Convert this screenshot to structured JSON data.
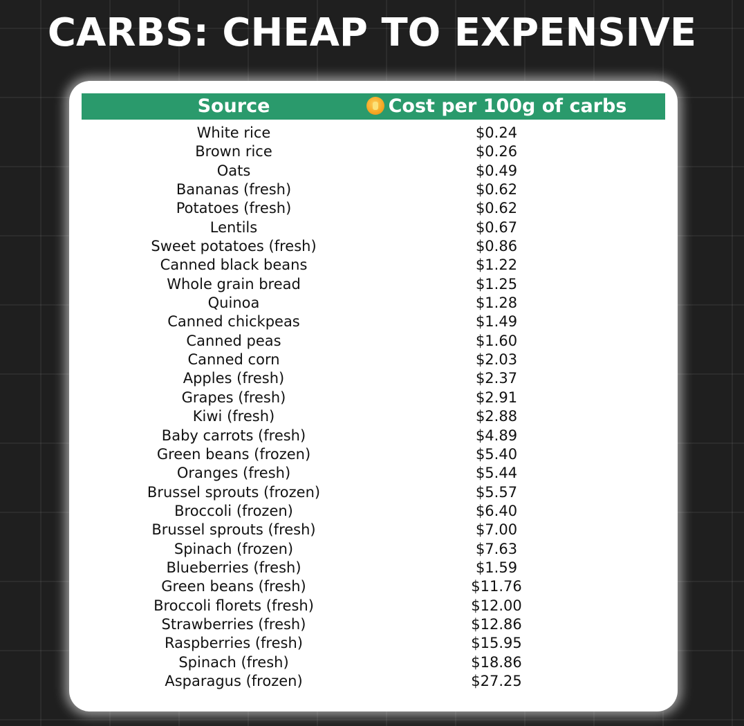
{
  "title": "CARBS: CHEAP TO EXPENSIVE",
  "table": {
    "headers": {
      "source": "Source",
      "cost": "Cost per 100g of carbs",
      "cost_icon": "coin-icon"
    },
    "header_color": "#2a9a6c",
    "rows": [
      {
        "source": "White rice",
        "cost": "$0.24"
      },
      {
        "source": "Brown rice",
        "cost": "$0.26"
      },
      {
        "source": "Oats",
        "cost": "$0.49"
      },
      {
        "source": "Bananas (fresh)",
        "cost": "$0.62"
      },
      {
        "source": "Potatoes (fresh)",
        "cost": "$0.62"
      },
      {
        "source": "Lentils",
        "cost": "$0.67"
      },
      {
        "source": "Sweet potatoes (fresh)",
        "cost": "$0.86"
      },
      {
        "source": "Canned black beans",
        "cost": "$1.22"
      },
      {
        "source": "Whole grain bread",
        "cost": "$1.25"
      },
      {
        "source": "Quinoa",
        "cost": "$1.28"
      },
      {
        "source": "Canned chickpeas",
        "cost": "$1.49"
      },
      {
        "source": "Canned peas",
        "cost": "$1.60"
      },
      {
        "source": "Canned corn",
        "cost": "$2.03"
      },
      {
        "source": "Apples (fresh)",
        "cost": "$2.37"
      },
      {
        "source": "Grapes (fresh)",
        "cost": "$2.91"
      },
      {
        "source": "Kiwi (fresh)",
        "cost": "$2.88"
      },
      {
        "source": "Baby carrots (fresh)",
        "cost": "$4.89"
      },
      {
        "source": "Green beans (frozen)",
        "cost": "$5.40"
      },
      {
        "source": "Oranges (fresh)",
        "cost": "$5.44"
      },
      {
        "source": "Brussel sprouts (frozen)",
        "cost": "$5.57"
      },
      {
        "source": "Broccoli (frozen)",
        "cost": "$6.40"
      },
      {
        "source": "Brussel sprouts (fresh)",
        "cost": "$7.00"
      },
      {
        "source": "Spinach (frozen)",
        "cost": "$7.63"
      },
      {
        "source": "Blueberries (fresh)",
        "cost": "$1.59"
      },
      {
        "source": "Green beans (fresh)",
        "cost": "$11.76"
      },
      {
        "source": "Broccoli florets (fresh)",
        "cost": "$12.00"
      },
      {
        "source": "Strawberries (fresh)",
        "cost": "$12.86"
      },
      {
        "source": "Raspberries (fresh)",
        "cost": "$15.95"
      },
      {
        "source": "Spinach (fresh)",
        "cost": "$18.86"
      },
      {
        "source": "Asparagus (frozen)",
        "cost": "$27.25"
      }
    ]
  }
}
